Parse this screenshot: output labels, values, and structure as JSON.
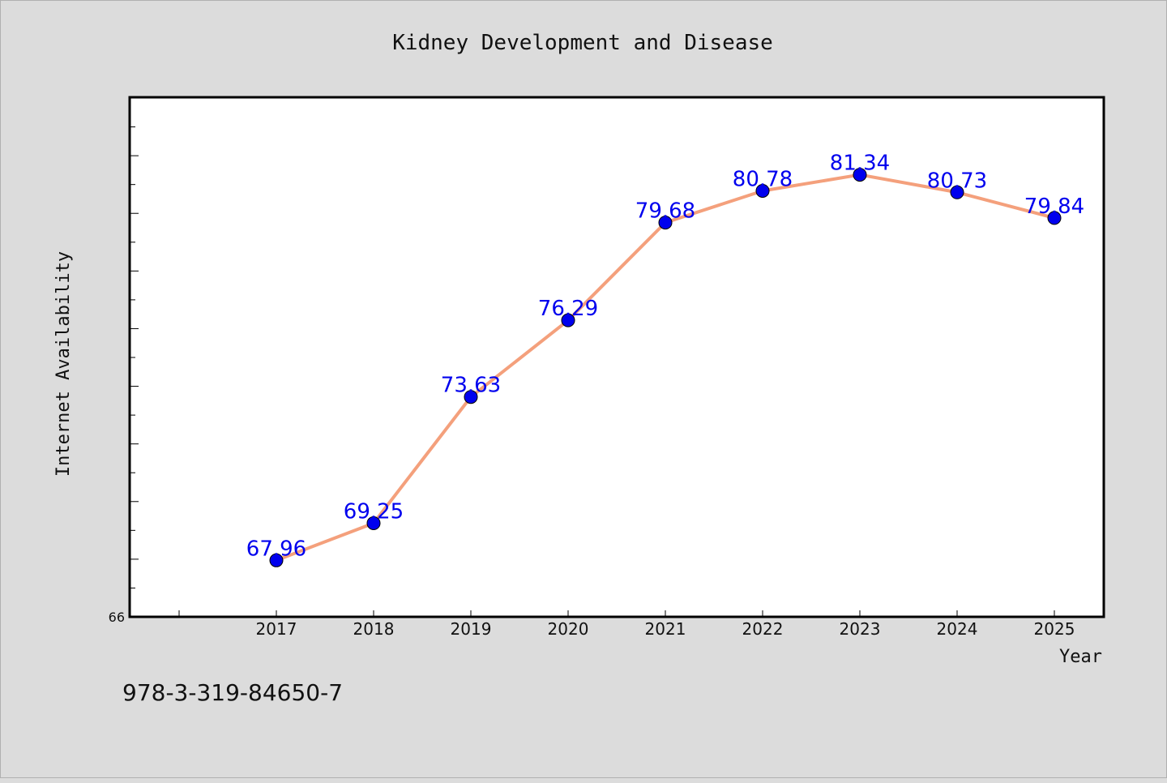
{
  "chart_data": {
    "type": "line",
    "title": "Kidney Development and Disease",
    "xlabel": "Year",
    "ylabel": "Internet Availability",
    "categories": [
      "2017",
      "2018",
      "2019",
      "2020",
      "2021",
      "2022",
      "2023",
      "2024",
      "2025"
    ],
    "series": [
      {
        "values": [
          67.96,
          69.25,
          73.63,
          76.29,
          79.68,
          80.78,
          81.34,
          80.73,
          79.84
        ],
        "labels": [
          "67.96",
          "69.25",
          "73.63",
          "76.29",
          "79.68",
          "80.78",
          "81.34",
          "80.73",
          "79.84"
        ]
      }
    ],
    "ylim": [
      66,
      84
    ],
    "y_tick_label": "66",
    "grid": false,
    "line_color": "#f4a07c",
    "marker_color": "#0000ee",
    "label_color": "#0000ee"
  },
  "footer": {
    "isbn": "978-3-319-84650-7"
  }
}
